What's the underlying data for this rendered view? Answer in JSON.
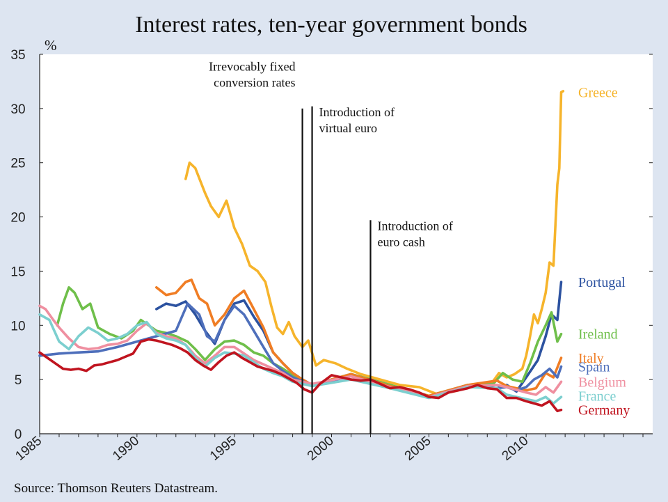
{
  "chart_data": {
    "type": "line",
    "title": "Interest rates, ten-year government bonds",
    "ylabel": "%",
    "xlabel": "",
    "xlim": [
      1985,
      2016.5
    ],
    "ylim": [
      0,
      35
    ],
    "y_ticks": [
      "0",
      "5",
      "10",
      "15",
      "20",
      "25",
      "30",
      "35"
    ],
    "x_ticks": [
      {
        "value": 1985,
        "label": "1985"
      },
      {
        "value": 1990,
        "label": "1990"
      },
      {
        "value": 1995,
        "label": "1995"
      },
      {
        "value": 2000,
        "label": "2000"
      },
      {
        "value": 2005,
        "label": "2005"
      },
      {
        "value": 2010,
        "label": "2010"
      }
    ],
    "grid": false,
    "legend": "right, labels at series ends",
    "events": [
      {
        "year": 1998.5,
        "lines": [
          "Irrevocably fixed",
          "conversion rates"
        ],
        "label_anchor": "end",
        "label_top": 33.5
      },
      {
        "year": 1999.0,
        "lines": [
          "Introduction of",
          "virtual euro"
        ],
        "label_anchor": "start",
        "label_top": 29.3
      },
      {
        "year": 2002.0,
        "lines": [
          "Introduction of",
          "euro cash"
        ],
        "label_anchor": "start",
        "label_top": 18.8
      }
    ],
    "series": [
      {
        "name": "Greece",
        "color": "#f6b42b",
        "label_y": 31.5,
        "x": [
          1992.5,
          1992.7,
          1993.0,
          1993.5,
          1993.8,
          1994.2,
          1994.6,
          1995.0,
          1995.4,
          1995.8,
          1996.2,
          1996.6,
          1996.9,
          1997.2,
          1997.5,
          1997.8,
          1998.1,
          1998.5,
          1998.8,
          1999.2,
          1999.6,
          2000.2,
          2000.8,
          2001.5,
          2002.5,
          2003.5,
          2004.5,
          2005.5,
          2006.5,
          2007.5,
          2008.2,
          2008.6,
          2009.0,
          2009.4,
          2009.8,
          2010.0,
          2010.2,
          2010.4,
          2010.6,
          2010.8,
          2011.0,
          2011.2,
          2011.4,
          2011.6,
          2011.7,
          2011.8,
          2011.9
        ],
        "values": [
          23.5,
          25.0,
          24.5,
          22.2,
          21.0,
          20.0,
          21.5,
          19.0,
          17.5,
          15.5,
          15.0,
          14.0,
          11.8,
          9.8,
          9.2,
          10.3,
          9.0,
          8.0,
          8.6,
          6.3,
          6.8,
          6.5,
          6.0,
          5.5,
          5.0,
          4.5,
          4.3,
          3.6,
          4.0,
          4.5,
          4.6,
          5.6,
          5.2,
          5.5,
          6.0,
          7.2,
          9.0,
          11.0,
          10.2,
          11.5,
          13.0,
          15.8,
          15.5,
          23.0,
          24.5,
          31.5,
          31.6
        ]
      },
      {
        "name": "Portugal",
        "color": "#2c52a0",
        "label_y": 14.0,
        "x": [
          1991.0,
          1991.5,
          1992.0,
          1992.5,
          1993.0,
          1993.5,
          1994.0,
          1994.5,
          1995.0,
          1995.5,
          1996.0,
          1996.5,
          1997.0,
          1997.5,
          1998.0,
          1998.5,
          1999.0,
          2001.0,
          2003.0,
          2005.0,
          2007.0,
          2008.5,
          2009.0,
          2009.5,
          2010.0,
          2010.3,
          2010.6,
          2011.0,
          2011.3,
          2011.6,
          2011.8
        ],
        "values": [
          11.5,
          12.0,
          11.8,
          12.2,
          11.0,
          9.5,
          8.3,
          10.5,
          12.0,
          12.3,
          10.8,
          9.5,
          7.5,
          6.5,
          5.6,
          5.0,
          4.5,
          5.5,
          4.5,
          3.4,
          4.5,
          4.2,
          4.5,
          3.9,
          5.2,
          6.0,
          6.8,
          9.0,
          11.0,
          10.5,
          14.0
        ]
      },
      {
        "name": "Ireland",
        "color": "#6fbf4a",
        "label_y": 9.2,
        "x": [
          1985.9,
          1986.2,
          1986.5,
          1986.8,
          1987.2,
          1987.6,
          1988.0,
          1988.6,
          1989.2,
          1989.8,
          1990.2,
          1990.6,
          1991.0,
          1991.5,
          1992.0,
          1992.6,
          1993.0,
          1993.5,
          1994.0,
          1994.5,
          1995.0,
          1995.5,
          1996.0,
          1996.5,
          1997.0,
          1997.5,
          1998.0,
          1998.5,
          1999.0,
          2001.0,
          2003.0,
          2005.0,
          2007.0,
          2008.3,
          2008.8,
          2009.3,
          2009.8,
          2010.2,
          2010.6,
          2011.0,
          2011.3,
          2011.6,
          2011.8
        ],
        "values": [
          10.0,
          12.0,
          13.5,
          13.0,
          11.5,
          12.0,
          9.8,
          9.2,
          8.8,
          9.5,
          10.5,
          10.0,
          9.5,
          9.3,
          9.0,
          8.5,
          7.8,
          6.8,
          7.8,
          8.5,
          8.6,
          8.2,
          7.5,
          7.2,
          6.5,
          6.0,
          5.4,
          4.9,
          4.5,
          5.5,
          4.5,
          3.5,
          4.5,
          4.6,
          5.6,
          5.0,
          4.8,
          6.5,
          8.5,
          10.0,
          11.2,
          8.5,
          9.2
        ]
      },
      {
        "name": "Italy",
        "color": "#f07d24",
        "label_y": 7.0,
        "x": [
          1991.0,
          1991.5,
          1992.0,
          1992.5,
          1992.8,
          1993.2,
          1993.6,
          1994.0,
          1994.5,
          1995.0,
          1995.5,
          1996.0,
          1996.5,
          1997.0,
          1997.5,
          1998.0,
          1998.5,
          1999.0,
          2001.0,
          2003.0,
          2005.0,
          2007.0,
          2008.5,
          2009.0,
          2009.5,
          2010.0,
          2010.5,
          2011.0,
          2011.4,
          2011.8
        ],
        "values": [
          13.5,
          12.8,
          13.0,
          14.0,
          14.2,
          12.5,
          12.0,
          10.0,
          11.0,
          12.5,
          13.2,
          11.5,
          9.8,
          7.5,
          6.5,
          5.6,
          5.0,
          4.5,
          5.5,
          4.4,
          3.5,
          4.5,
          4.9,
          4.4,
          4.2,
          4.0,
          4.2,
          5.6,
          5.2,
          7.0
        ]
      },
      {
        "name": "Spain",
        "color": "#4e6fbb",
        "label_y": 6.2,
        "x": [
          1985.0,
          1986.0,
          1987.0,
          1988.0,
          1989.0,
          1990.0,
          1991.0,
          1992.0,
          1992.6,
          1993.2,
          1993.6,
          1994.0,
          1994.5,
          1995.0,
          1995.5,
          1996.0,
          1996.5,
          1997.0,
          1997.5,
          1998.0,
          1999.0,
          2001.0,
          2003.0,
          2005.0,
          2007.0,
          2008.5,
          2009.0,
          2009.5,
          2010.0,
          2010.4,
          2010.8,
          2011.2,
          2011.6,
          2011.8
        ],
        "values": [
          7.2,
          7.4,
          7.5,
          7.6,
          8.0,
          8.5,
          9.0,
          9.5,
          12.0,
          11.0,
          9.0,
          8.5,
          10.5,
          11.8,
          11.0,
          9.5,
          8.0,
          6.5,
          5.8,
          5.2,
          4.5,
          5.3,
          4.3,
          3.4,
          4.4,
          4.2,
          4.3,
          4.0,
          4.3,
          5.0,
          5.4,
          6.0,
          5.2,
          6.2
        ]
      },
      {
        "name": "Belgium",
        "color": "#ef8fa0",
        "label_y": 4.8,
        "x": [
          1985.0,
          1985.3,
          1985.7,
          1986.0,
          1986.5,
          1987.0,
          1987.5,
          1988.0,
          1988.5,
          1989.0,
          1989.5,
          1990.0,
          1990.5,
          1991.0,
          1991.5,
          1992.0,
          1992.5,
          1993.0,
          1993.5,
          1994.0,
          1994.5,
          1995.0,
          1995.5,
          1996.0,
          1996.5,
          1997.0,
          1997.5,
          1998.0,
          1999.0,
          2001.0,
          2003.0,
          2005.0,
          2007.0,
          2008.5,
          2009.0,
          2010.0,
          2010.5,
          2011.0,
          2011.4,
          2011.8
        ],
        "values": [
          11.8,
          11.5,
          10.5,
          9.8,
          8.8,
          8.0,
          7.8,
          7.9,
          8.2,
          8.3,
          8.6,
          9.5,
          10.2,
          9.3,
          9.0,
          8.8,
          8.2,
          7.2,
          6.5,
          7.2,
          8.0,
          8.0,
          7.4,
          6.8,
          6.4,
          6.0,
          5.6,
          5.0,
          4.6,
          5.3,
          4.3,
          3.4,
          4.4,
          4.5,
          4.3,
          3.8,
          3.6,
          4.3,
          3.8,
          4.8
        ]
      },
      {
        "name": "France",
        "color": "#7ccfcf",
        "label_y": 3.5,
        "x": [
          1985.0,
          1985.5,
          1986.0,
          1986.5,
          1987.0,
          1987.5,
          1988.0,
          1988.5,
          1989.0,
          1989.5,
          1990.0,
          1990.5,
          1991.0,
          1991.5,
          1992.0,
          1992.5,
          1993.0,
          1993.5,
          1994.0,
          1994.5,
          1995.0,
          1995.5,
          1996.0,
          1996.5,
          1997.0,
          1997.5,
          1998.0,
          1999.0,
          2001.0,
          2003.0,
          2005.0,
          2007.0,
          2008.5,
          2009.0,
          2010.0,
          2010.5,
          2011.0,
          2011.4,
          2011.8
        ],
        "values": [
          11.0,
          10.5,
          8.5,
          7.8,
          9.0,
          9.8,
          9.3,
          8.6,
          8.8,
          9.2,
          10.0,
          10.3,
          9.2,
          8.8,
          8.6,
          8.2,
          7.0,
          6.2,
          7.0,
          7.5,
          7.4,
          7.2,
          6.6,
          6.0,
          5.6,
          5.3,
          4.8,
          4.4,
          5.0,
          4.2,
          3.3,
          4.3,
          4.2,
          3.6,
          3.2,
          3.0,
          3.4,
          2.8,
          3.4
        ]
      },
      {
        "name": "Germany",
        "color": "#c0141f",
        "label_y": 2.2,
        "x": [
          1985.0,
          1985.4,
          1985.8,
          1986.2,
          1986.6,
          1987.0,
          1987.4,
          1987.8,
          1988.2,
          1988.6,
          1989.0,
          1989.4,
          1989.8,
          1990.2,
          1990.6,
          1991.0,
          1991.4,
          1991.8,
          1992.2,
          1992.6,
          1993.0,
          1993.4,
          1993.8,
          1994.2,
          1994.6,
          1995.0,
          1995.4,
          1995.8,
          1996.2,
          1996.6,
          1997.0,
          1997.4,
          1997.8,
          1998.2,
          1998.6,
          1999.0,
          1999.4,
          2000.0,
          2000.5,
          2001.0,
          2001.5,
          2002.0,
          2002.5,
          2003.0,
          2003.5,
          2004.0,
          2004.5,
          2005.0,
          2005.5,
          2006.0,
          2006.5,
          2007.0,
          2007.5,
          2008.0,
          2008.5,
          2009.0,
          2009.5,
          2010.0,
          2010.4,
          2010.8,
          2011.2,
          2011.6,
          2011.8
        ],
        "values": [
          7.5,
          7.0,
          6.5,
          6.0,
          5.9,
          6.0,
          5.8,
          6.3,
          6.4,
          6.6,
          6.8,
          7.1,
          7.4,
          8.5,
          8.7,
          8.6,
          8.4,
          8.2,
          7.9,
          7.5,
          6.8,
          6.3,
          5.9,
          6.6,
          7.2,
          7.5,
          7.0,
          6.6,
          6.2,
          6.0,
          5.8,
          5.5,
          5.1,
          4.7,
          4.1,
          3.8,
          4.6,
          5.4,
          5.2,
          5.0,
          4.9,
          5.0,
          4.6,
          4.2,
          4.3,
          4.1,
          3.8,
          3.4,
          3.3,
          3.8,
          4.0,
          4.2,
          4.5,
          4.2,
          4.1,
          3.3,
          3.3,
          3.0,
          2.8,
          2.6,
          3.0,
          2.1,
          2.2
        ]
      }
    ]
  },
  "source": "Source: Thomson Reuters Datastream."
}
